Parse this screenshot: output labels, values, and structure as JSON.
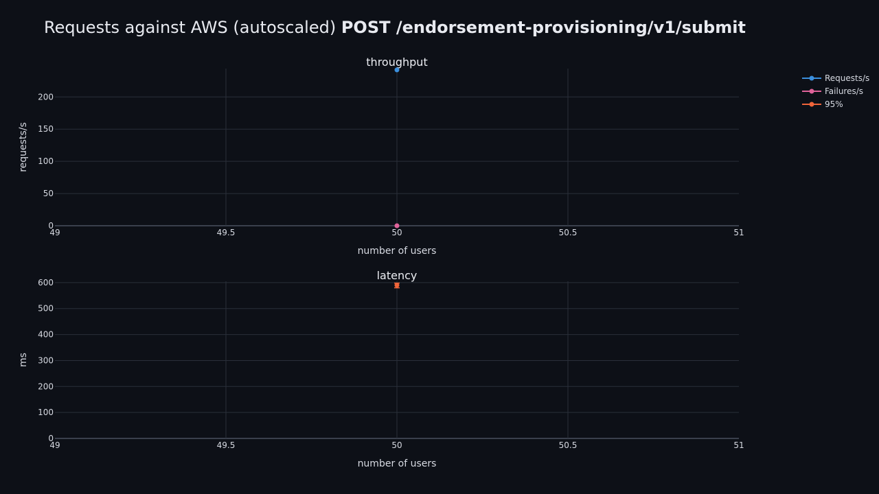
{
  "title": {
    "prefix": "Requests against AWS (autoscaled) ",
    "endpoint": "POST /endorsement-provisioning/v1/submit"
  },
  "colors": {
    "background": "#0d1017",
    "grid": "#2a2f3a",
    "zero_line": "#3a404c",
    "requests": "#3b8fdd",
    "failures": "#e0639a",
    "p95": "#f0653a"
  },
  "chart_data": [
    {
      "type": "line",
      "title": "throughput",
      "xlabel": "number of users",
      "ylabel": "requests/s",
      "xlim": [
        49,
        51
      ],
      "ylim": [
        0,
        244
      ],
      "x_ticks": [
        49,
        49.5,
        50,
        50.5,
        51
      ],
      "y_ticks": [
        0,
        50,
        100,
        150,
        200
      ],
      "grid": true,
      "series": [
        {
          "name": "Requests/s",
          "color": "#3b8fdd",
          "x": [
            50
          ],
          "y": [
            242
          ]
        },
        {
          "name": "Failures/s",
          "color": "#e0639a",
          "x": [
            50
          ],
          "y": [
            0
          ]
        }
      ]
    },
    {
      "type": "scatter",
      "title": "latency",
      "xlabel": "number of users",
      "ylabel": "ms",
      "xlim": [
        49,
        51
      ],
      "ylim": [
        0,
        605
      ],
      "x_ticks": [
        49,
        49.5,
        50,
        50.5,
        51
      ],
      "y_ticks": [
        0,
        100,
        200,
        300,
        400,
        500,
        600
      ],
      "grid": true,
      "series": [
        {
          "name": "95%",
          "color": "#f0653a",
          "x": [
            50
          ],
          "y": [
            590
          ],
          "error_low": [
            580
          ],
          "error_high": [
            598
          ]
        }
      ]
    }
  ],
  "legend": {
    "placement": "top-right",
    "items": [
      {
        "label": "Requests/s",
        "color": "#3b8fdd"
      },
      {
        "label": "Failures/s",
        "color": "#e0639a"
      },
      {
        "label": "95%",
        "color": "#f0653a"
      }
    ]
  }
}
